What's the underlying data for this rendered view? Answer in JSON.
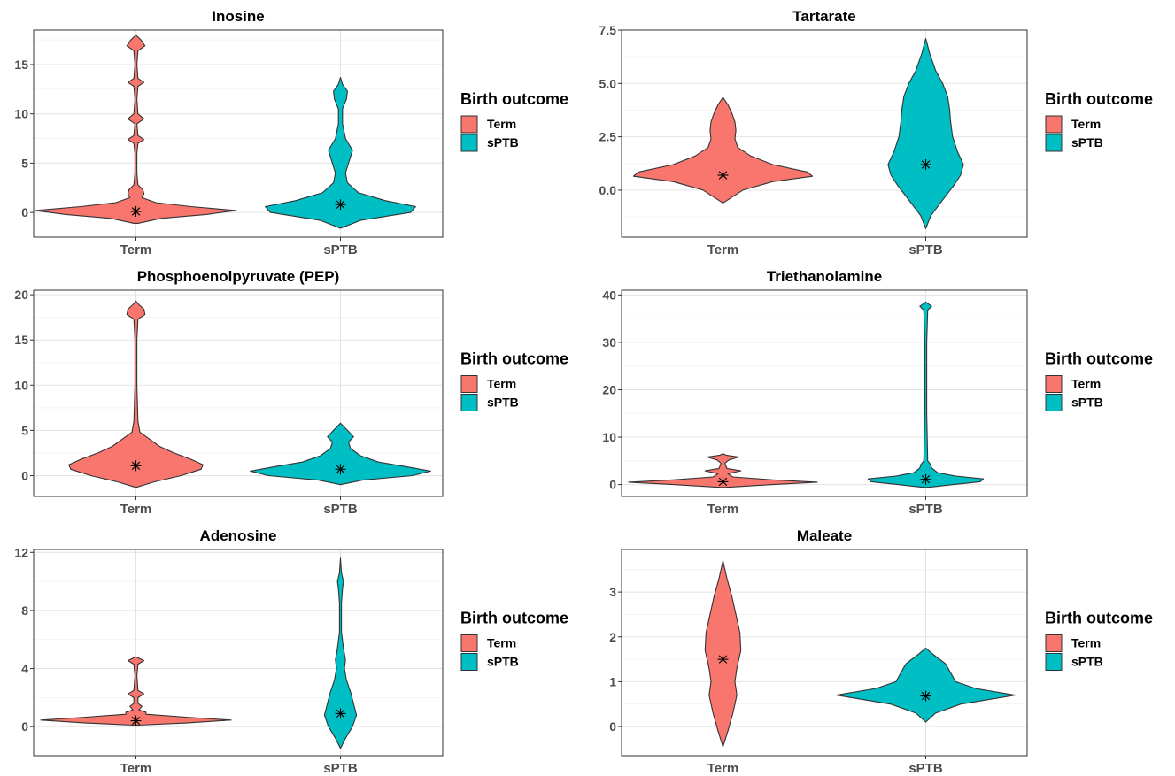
{
  "legend": {
    "title": "Birth outcome",
    "entries": [
      {
        "label": "Term",
        "color": "#F8766D"
      },
      {
        "label": "sPTB",
        "color": "#00BFC4"
      }
    ],
    "placement": "right"
  },
  "chart_data": [
    {
      "type": "violin",
      "title": "Inosine",
      "categories": [
        "Term",
        "sPTB"
      ],
      "ylim": [
        -2.5,
        18.5
      ],
      "yticks": [
        0,
        5,
        10,
        15
      ],
      "ytick_labels": [
        "0",
        "5",
        "10",
        "15"
      ],
      "median_marker": "*",
      "grid": true,
      "series": [
        {
          "name": "Term",
          "color": "#F8766D",
          "median": 0.1,
          "profile": [
            [
              -1.1,
              0.02
            ],
            [
              -0.6,
              0.25
            ],
            [
              -0.2,
              0.7
            ],
            [
              0.2,
              1.0
            ],
            [
              0.6,
              0.55
            ],
            [
              1.0,
              0.2
            ],
            [
              1.5,
              0.06
            ],
            [
              1.9,
              0.08
            ],
            [
              2.3,
              0.07
            ],
            [
              2.8,
              0.02
            ],
            [
              4,
              0.01
            ],
            [
              6,
              0.01
            ],
            [
              7.0,
              0.02
            ],
            [
              7.4,
              0.08
            ],
            [
              7.8,
              0.02
            ],
            [
              9.0,
              0.01
            ],
            [
              9.5,
              0.08
            ],
            [
              10.0,
              0.02
            ],
            [
              11.5,
              0.01
            ],
            [
              12.8,
              0.02
            ],
            [
              13.2,
              0.08
            ],
            [
              13.6,
              0.02
            ],
            [
              15,
              0.01
            ],
            [
              16.4,
              0.02
            ],
            [
              16.9,
              0.09
            ],
            [
              17.5,
              0.05
            ],
            [
              18.0,
              0.0
            ]
          ]
        },
        {
          "name": "sPTB",
          "color": "#00BFC4",
          "median": 0.8,
          "profile": [
            [
              -1.6,
              0.0
            ],
            [
              -0.8,
              0.2
            ],
            [
              0.0,
              0.7
            ],
            [
              0.6,
              0.75
            ],
            [
              1.2,
              0.45
            ],
            [
              2.0,
              0.18
            ],
            [
              3.0,
              0.07
            ],
            [
              4.0,
              0.05
            ],
            [
              5.0,
              0.08
            ],
            [
              6.3,
              0.12
            ],
            [
              7.5,
              0.05
            ],
            [
              9,
              0.02
            ],
            [
              10.5,
              0.02
            ],
            [
              11.5,
              0.06
            ],
            [
              12.3,
              0.07
            ],
            [
              13.0,
              0.02
            ],
            [
              13.7,
              0.0
            ]
          ]
        }
      ]
    },
    {
      "type": "violin",
      "title": "Tartarate",
      "categories": [
        "Term",
        "sPTB"
      ],
      "ylim": [
        -2.2,
        7.5
      ],
      "yticks": [
        0,
        2.5,
        5,
        7.5
      ],
      "ytick_labels": [
        "0.0",
        "2.5",
        "5.0",
        "7.5"
      ],
      "median_marker": "*",
      "grid": true,
      "series": [
        {
          "name": "Term",
          "color": "#F8766D",
          "median": 0.7,
          "profile": [
            [
              -0.6,
              0.0
            ],
            [
              0.0,
              0.2
            ],
            [
              0.4,
              0.5
            ],
            [
              0.65,
              0.9
            ],
            [
              0.85,
              0.85
            ],
            [
              1.2,
              0.5
            ],
            [
              1.6,
              0.28
            ],
            [
              2.0,
              0.15
            ],
            [
              2.4,
              0.12
            ],
            [
              2.8,
              0.13
            ],
            [
              3.2,
              0.12
            ],
            [
              3.6,
              0.09
            ],
            [
              4.0,
              0.05
            ],
            [
              4.35,
              0.0
            ]
          ]
        },
        {
          "name": "sPTB",
          "color": "#00BFC4",
          "median": 1.2,
          "profile": [
            [
              -1.8,
              0.0
            ],
            [
              -1.2,
              0.05
            ],
            [
              -0.4,
              0.18
            ],
            [
              0.2,
              0.28
            ],
            [
              0.7,
              0.35
            ],
            [
              1.2,
              0.38
            ],
            [
              1.8,
              0.32
            ],
            [
              2.5,
              0.27
            ],
            [
              3.2,
              0.25
            ],
            [
              3.8,
              0.24
            ],
            [
              4.4,
              0.22
            ],
            [
              5.0,
              0.17
            ],
            [
              5.6,
              0.1
            ],
            [
              6.4,
              0.04
            ],
            [
              7.1,
              0.0
            ]
          ]
        }
      ]
    },
    {
      "type": "violin",
      "title": "Phosphoenolpyruvate (PEP)",
      "categories": [
        "Term",
        "sPTB"
      ],
      "ylim": [
        -2.3,
        20.5
      ],
      "yticks": [
        0,
        5,
        10,
        15,
        20
      ],
      "ytick_labels": [
        "0",
        "5",
        "10",
        "15",
        "20"
      ],
      "median_marker": "*",
      "grid": true,
      "series": [
        {
          "name": "Term",
          "color": "#F8766D",
          "median": 1.1,
          "profile": [
            [
              -1.3,
              0.0
            ],
            [
              -0.7,
              0.18
            ],
            [
              0.0,
              0.45
            ],
            [
              0.7,
              0.65
            ],
            [
              1.2,
              0.67
            ],
            [
              1.8,
              0.55
            ],
            [
              2.5,
              0.38
            ],
            [
              3.2,
              0.24
            ],
            [
              4.0,
              0.14
            ],
            [
              4.8,
              0.04
            ],
            [
              6,
              0.02
            ],
            [
              10,
              0.01
            ],
            [
              15,
              0.01
            ],
            [
              17.3,
              0.02
            ],
            [
              17.8,
              0.09
            ],
            [
              18.4,
              0.08
            ],
            [
              18.9,
              0.03
            ],
            [
              19.3,
              0.0
            ]
          ]
        },
        {
          "name": "sPTB",
          "color": "#00BFC4",
          "median": 0.7,
          "profile": [
            [
              -1.0,
              0.0
            ],
            [
              -0.5,
              0.22
            ],
            [
              0.0,
              0.72
            ],
            [
              0.5,
              0.9
            ],
            [
              1.0,
              0.65
            ],
            [
              1.5,
              0.38
            ],
            [
              2.2,
              0.2
            ],
            [
              3.0,
              0.1
            ],
            [
              3.7,
              0.08
            ],
            [
              4.3,
              0.13
            ],
            [
              5.0,
              0.07
            ],
            [
              5.8,
              0.0
            ]
          ]
        }
      ]
    },
    {
      "type": "violin",
      "title": "Triethanolamine",
      "categories": [
        "Term",
        "sPTB"
      ],
      "ylim": [
        -2.5,
        41
      ],
      "yticks": [
        0,
        10,
        20,
        30,
        40
      ],
      "ytick_labels": [
        "0",
        "10",
        "20",
        "30",
        "40"
      ],
      "median_marker": "*",
      "grid": true,
      "series": [
        {
          "name": "Term",
          "color": "#F8766D",
          "median": 0.6,
          "profile": [
            [
              -0.6,
              0.02
            ],
            [
              0.0,
              0.5
            ],
            [
              0.5,
              0.95
            ],
            [
              1.0,
              0.5
            ],
            [
              1.6,
              0.1
            ],
            [
              2.3,
              0.05
            ],
            [
              2.9,
              0.18
            ],
            [
              3.4,
              0.04
            ],
            [
              4.5,
              0.02
            ],
            [
              5.2,
              0.06
            ],
            [
              5.8,
              0.16
            ],
            [
              6.2,
              0.03
            ],
            [
              6.5,
              0.0
            ]
          ]
        },
        {
          "name": "sPTB",
          "color": "#00BFC4",
          "median": 1.1,
          "profile": [
            [
              -0.6,
              0.02
            ],
            [
              0.0,
              0.28
            ],
            [
              0.6,
              0.55
            ],
            [
              1.2,
              0.58
            ],
            [
              1.8,
              0.3
            ],
            [
              2.5,
              0.12
            ],
            [
              3.5,
              0.06
            ],
            [
              4.2,
              0.05
            ],
            [
              5.0,
              0.02
            ],
            [
              15,
              0.01
            ],
            [
              30,
              0.01
            ],
            [
              36.8,
              0.02
            ],
            [
              37.6,
              0.06
            ],
            [
              38.5,
              0.0
            ]
          ]
        }
      ]
    },
    {
      "type": "violin",
      "title": "Adenosine",
      "categories": [
        "Term",
        "sPTB"
      ],
      "ylim": [
        -2.0,
        12.2
      ],
      "yticks": [
        0,
        4,
        8,
        12
      ],
      "ytick_labels": [
        "0",
        "4",
        "8",
        "12"
      ],
      "median_marker": "*",
      "grid": true,
      "series": [
        {
          "name": "Term",
          "color": "#F8766D",
          "median": 0.4,
          "profile": [
            [
              0.1,
              0.02
            ],
            [
              0.25,
              0.5
            ],
            [
              0.45,
              0.95
            ],
            [
              0.65,
              0.5
            ],
            [
              0.85,
              0.1
            ],
            [
              1.0,
              0.1
            ],
            [
              1.15,
              0.03
            ],
            [
              1.4,
              0.06
            ],
            [
              1.6,
              0.02
            ],
            [
              2.0,
              0.02
            ],
            [
              2.25,
              0.08
            ],
            [
              2.5,
              0.02
            ],
            [
              3.5,
              0.01
            ],
            [
              4.3,
              0.02
            ],
            [
              4.55,
              0.08
            ],
            [
              4.8,
              0.0
            ]
          ]
        },
        {
          "name": "sPTB",
          "color": "#00BFC4",
          "median": 0.9,
          "profile": [
            [
              -1.5,
              0.0
            ],
            [
              -0.8,
              0.05
            ],
            [
              0.0,
              0.12
            ],
            [
              0.8,
              0.16
            ],
            [
              1.6,
              0.13
            ],
            [
              2.4,
              0.1
            ],
            [
              3.2,
              0.06
            ],
            [
              4.0,
              0.04
            ],
            [
              4.6,
              0.05
            ],
            [
              5.4,
              0.03
            ],
            [
              6.5,
              0.01
            ],
            [
              8.5,
              0.01
            ],
            [
              9.5,
              0.02
            ],
            [
              10.0,
              0.03
            ],
            [
              10.6,
              0.01
            ],
            [
              11.6,
              0.0
            ]
          ]
        }
      ]
    },
    {
      "type": "violin",
      "title": "Maleate",
      "categories": [
        "Term",
        "sPTB"
      ],
      "ylim": [
        -0.65,
        3.95
      ],
      "yticks": [
        0,
        1,
        2,
        3
      ],
      "ytick_labels": [
        "0",
        "1",
        "2",
        "3"
      ],
      "median_marker": "*",
      "grid": true,
      "series": [
        {
          "name": "Term",
          "color": "#F8766D",
          "median": 1.5,
          "profile": [
            [
              -0.45,
              0.0
            ],
            [
              -0.1,
              0.05
            ],
            [
              0.3,
              0.1
            ],
            [
              0.7,
              0.14
            ],
            [
              1.0,
              0.12
            ],
            [
              1.3,
              0.14
            ],
            [
              1.7,
              0.18
            ],
            [
              2.1,
              0.17
            ],
            [
              2.5,
              0.13
            ],
            [
              2.9,
              0.09
            ],
            [
              3.3,
              0.04
            ],
            [
              3.7,
              0.0
            ]
          ]
        },
        {
          "name": "sPTB",
          "color": "#00BFC4",
          "median": 0.68,
          "profile": [
            [
              0.1,
              0.0
            ],
            [
              0.3,
              0.1
            ],
            [
              0.5,
              0.35
            ],
            [
              0.7,
              0.9
            ],
            [
              0.85,
              0.5
            ],
            [
              1.0,
              0.3
            ],
            [
              1.2,
              0.25
            ],
            [
              1.4,
              0.2
            ],
            [
              1.6,
              0.08
            ],
            [
              1.75,
              0.0
            ]
          ]
        }
      ]
    }
  ]
}
